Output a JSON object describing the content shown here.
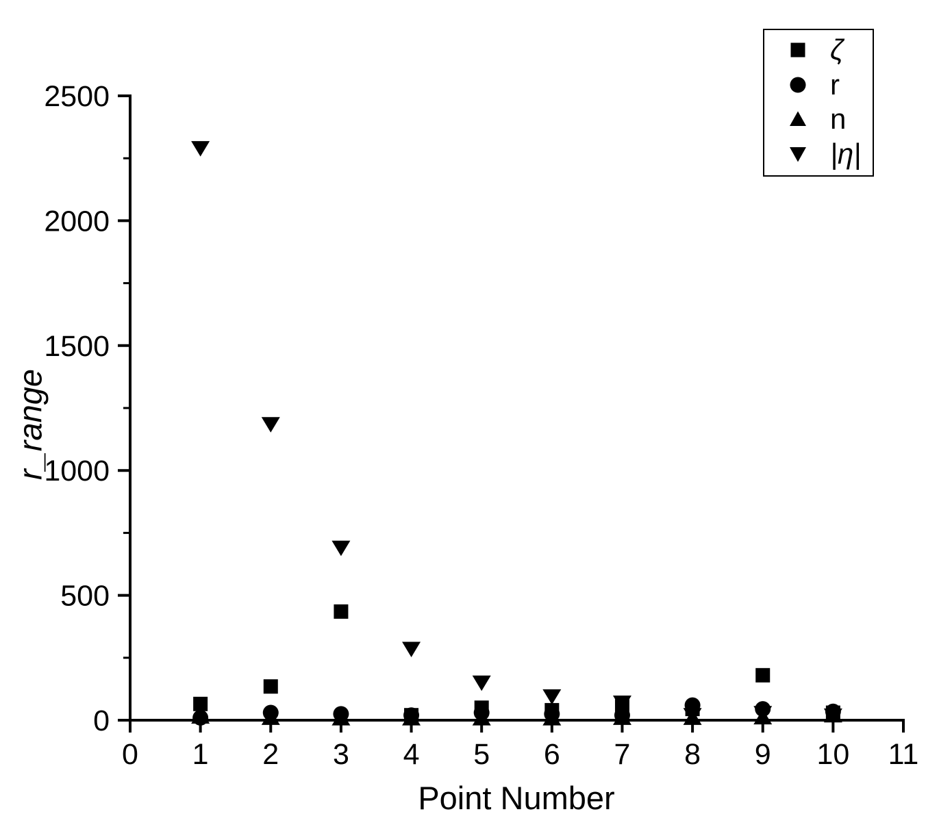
{
  "figure": {
    "background_color": "#ffffff",
    "axis_color": "#000000",
    "marker_color": "#000000"
  },
  "chart_data": {
    "type": "scatter",
    "title": "",
    "xlabel": "Point Number",
    "ylabel": "r_range",
    "xlim": [
      0,
      11
    ],
    "ylim": [
      0,
      2500
    ],
    "x_ticks": [
      0,
      1,
      2,
      3,
      4,
      5,
      6,
      7,
      8,
      9,
      10,
      11
    ],
    "y_ticks": [
      0,
      500,
      1000,
      1500,
      2000,
      2500
    ],
    "y_minor_ticks": [
      250,
      750,
      1250,
      1750,
      2250
    ],
    "grid": false,
    "legend_position": "top-right",
    "x": [
      1,
      2,
      3,
      4,
      5,
      6,
      7,
      8,
      9,
      10
    ],
    "series": [
      {
        "name": "ζ",
        "marker": "square",
        "values": [
          65,
          135,
          435,
          20,
          50,
          40,
          55,
          45,
          180,
          30
        ]
      },
      {
        "name": "r",
        "marker": "circle",
        "values": [
          10,
          30,
          25,
          20,
          30,
          25,
          20,
          60,
          45,
          35
        ]
      },
      {
        "name": "n",
        "marker": "triangle-up",
        "values": [
          15,
          10,
          8,
          8,
          8,
          8,
          10,
          10,
          12,
          20
        ]
      },
      {
        "name": "|η|",
        "marker": "triangle-down",
        "values": [
          2290,
          1185,
          690,
          285,
          150,
          95,
          70,
          20,
          28,
          18
        ]
      }
    ]
  }
}
